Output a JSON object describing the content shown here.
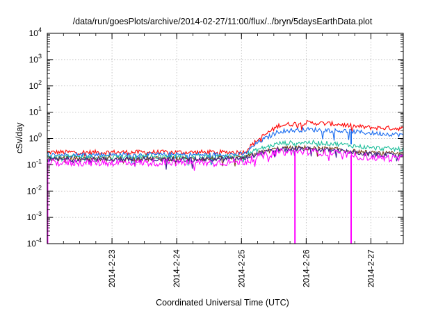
{
  "chart_data": {
    "type": "line",
    "title": "/data/run/goesPlots/archive/2014-02-27/11:00/flux/../bryn/5daysEarthData.plot",
    "xlabel": "Coordinated Universal Time (UTC)",
    "ylabel": "cSv/day",
    "y_scale": "log",
    "ylim": [
      0.0001,
      10000
    ],
    "xlim": [
      "2014-02-22 00:00",
      "2014-02-27 12:00"
    ],
    "y_ticks": [
      {
        "base": "10",
        "exp": "-4"
      },
      {
        "base": "10",
        "exp": "-3"
      },
      {
        "base": "10",
        "exp": "-2"
      },
      {
        "base": "10",
        "exp": "-1"
      },
      {
        "base": "10",
        "exp": "0"
      },
      {
        "base": "10",
        "exp": "1"
      },
      {
        "base": "10",
        "exp": "2"
      },
      {
        "base": "10",
        "exp": "3"
      },
      {
        "base": "10",
        "exp": "4"
      }
    ],
    "x_ticks": [
      "2014-2-23",
      "2014-2-24",
      "2014-2-25",
      "2014-2-26",
      "2014-2-27"
    ],
    "grid": true,
    "legend": "none",
    "series": [
      {
        "color": "#ff0000",
        "x": [
          "2014-02-22 00:00",
          "2014-02-24 12:00",
          "2014-02-25 01:00",
          "2014-02-25 06:00",
          "2014-02-25 14:00",
          "2014-02-26 00:00",
          "2014-02-26 12:00",
          "2014-02-26 18:00",
          "2014-02-27 00:00",
          "2014-02-27 12:00"
        ],
        "values": [
          0.3,
          0.3,
          0.3,
          0.9,
          3.2,
          4.0,
          3.5,
          2.9,
          2.6,
          2.4
        ]
      },
      {
        "color": "#1a6cf0",
        "x": [
          "2014-02-22 00:00",
          "2014-02-24 12:00",
          "2014-02-25 01:00",
          "2014-02-25 06:00",
          "2014-02-25 14:00",
          "2014-02-26 00:00",
          "2014-02-26 12:00",
          "2014-02-26 18:00",
          "2014-02-27 00:00",
          "2014-02-27 12:00"
        ],
        "values": [
          0.24,
          0.24,
          0.25,
          0.7,
          1.9,
          2.2,
          2.0,
          1.8,
          1.6,
          1.4
        ]
      },
      {
        "color": "#1fbf9c",
        "x": [
          "2014-02-22 00:00",
          "2014-02-24 12:00",
          "2014-02-25 01:00",
          "2014-02-25 06:00",
          "2014-02-25 14:00",
          "2014-02-26 00:00",
          "2014-02-26 12:00",
          "2014-02-26 18:00",
          "2014-02-27 00:00",
          "2014-02-27 12:00"
        ],
        "values": [
          0.2,
          0.2,
          0.21,
          0.38,
          0.65,
          0.72,
          0.62,
          0.52,
          0.44,
          0.38
        ]
      },
      {
        "color": "#7a3f1a",
        "x": [
          "2014-02-22 00:00",
          "2014-02-24 12:00",
          "2014-02-25 01:00",
          "2014-02-25 06:00",
          "2014-02-25 14:00",
          "2014-02-26 00:00",
          "2014-02-26 12:00",
          "2014-02-26 18:00",
          "2014-02-27 00:00",
          "2014-02-27 12:00"
        ],
        "values": [
          0.17,
          0.17,
          0.18,
          0.28,
          0.42,
          0.44,
          0.38,
          0.32,
          0.28,
          0.25
        ]
      },
      {
        "color": "#3a1f8c",
        "x": [
          "2014-02-22 00:00",
          "2014-02-24 12:00",
          "2014-02-25 01:00",
          "2014-02-25 06:00",
          "2014-02-25 14:00",
          "2014-02-26 00:00",
          "2014-02-26 12:00",
          "2014-02-26 18:00",
          "2014-02-27 00:00",
          "2014-02-27 12:00"
        ],
        "values": [
          0.16,
          0.16,
          0.17,
          0.26,
          0.38,
          0.4,
          0.34,
          0.29,
          0.25,
          0.22
        ]
      },
      {
        "color": "#ff00ff",
        "x": [
          "2014-02-22 00:00",
          "2014-02-24 12:00",
          "2014-02-25 01:00",
          "2014-02-25 06:00",
          "2014-02-25 14:00",
          "2014-02-26 00:00",
          "2014-02-26 12:00",
          "2014-02-26 18:00",
          "2014-02-27 00:00",
          "2014-02-27 12:00"
        ],
        "values": [
          0.12,
          0.12,
          0.13,
          0.2,
          0.3,
          0.32,
          0.27,
          0.22,
          0.19,
          0.17
        ]
      }
    ],
    "dropouts": [
      {
        "x": "2014-02-22 00:06",
        "color": "#ff00ff",
        "value": 0.0001
      },
      {
        "x": "2014-02-25 19:50",
        "color": "#ff00ff",
        "value": 0.0001
      },
      {
        "x": "2014-02-26 16:40",
        "color": "#1a6cf0",
        "value": 0.6
      },
      {
        "x": "2014-02-26 16:40",
        "color": "#ff00ff",
        "value": 0.0001
      }
    ]
  }
}
